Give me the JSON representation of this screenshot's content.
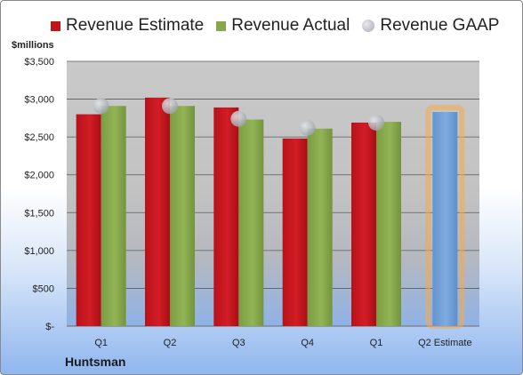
{
  "units_label": "$millions",
  "company": "Huntsman",
  "chart_data": {
    "type": "bar",
    "categories": [
      "Q1",
      "Q2",
      "Q3",
      "Q4",
      "Q1",
      "Q2 Estimate"
    ],
    "series": [
      {
        "name": "Revenue Estimate",
        "type": "bar",
        "color": "#c3141c",
        "values": [
          2800,
          3020,
          2890,
          2480,
          2690,
          null
        ]
      },
      {
        "name": "Revenue Actual",
        "type": "bar",
        "color": "#86a84a",
        "values": [
          2910,
          2910,
          2730,
          2610,
          2700,
          null
        ]
      },
      {
        "name": "Revenue GAAP",
        "type": "marker",
        "color": "#b4b6bf",
        "values": [
          2910,
          2910,
          2740,
          2620,
          2690,
          null
        ]
      }
    ],
    "highlight": {
      "category": "Q2 Estimate",
      "value": 2830,
      "color": "#6e9fd8",
      "glow": "#f5a94a"
    },
    "yticks": [
      0,
      500,
      1000,
      1500,
      2000,
      2500,
      3000,
      3500
    ],
    "ytick_labels": [
      "$-",
      "$500",
      "$1,000",
      "$1,500",
      "$2,000",
      "$2,500",
      "$3,000",
      "$3,500"
    ],
    "ylim": [
      0,
      3500
    ],
    "grid": true,
    "legend_position": "top"
  }
}
